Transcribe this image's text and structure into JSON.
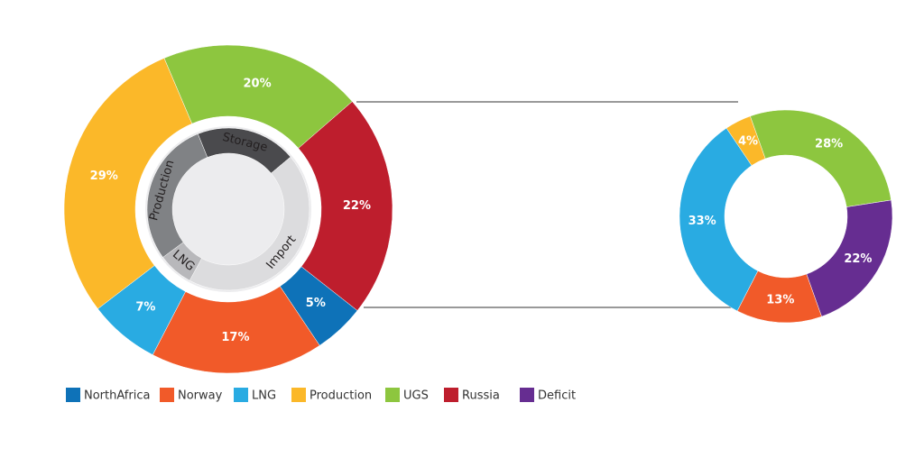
{
  "chart_data": [
    {
      "type": "donut",
      "rings": [
        {
          "categories": [
            "UGS",
            "Russia",
            "NorthAfrica",
            "Norway",
            "LNG",
            "Production"
          ],
          "values": [
            20,
            22,
            5,
            17,
            7,
            29
          ],
          "value_labels": [
            "20%",
            "22%",
            "5%",
            "17%",
            "7%",
            "29%"
          ],
          "colors": [
            "#8dc63f",
            "#be1e2d",
            "#0e72b8",
            "#f15a29",
            "#29abe2",
            "#fbb829"
          ]
        },
        {
          "categories": [
            "Storage",
            "Import",
            "LNG",
            "Production"
          ],
          "values": [
            20,
            44,
            7,
            29
          ],
          "colors": [
            "#4a4a4d",
            "#dcdcde",
            "#b8b8bb",
            "#808285"
          ]
        }
      ]
    },
    {
      "type": "donut",
      "rings": [
        {
          "categories": [
            "Production",
            "UGS",
            "Deficit",
            "Norway",
            "LNG"
          ],
          "values": [
            4,
            28,
            22,
            13,
            33
          ],
          "value_labels": [
            "4%",
            "28%",
            "22%",
            "13%",
            "33%"
          ],
          "colors": [
            "#fbb829",
            "#8dc63f",
            "#662d91",
            "#f15a29",
            "#29abe2"
          ]
        }
      ]
    }
  ],
  "legend": {
    "items": [
      {
        "name": "NorthAfrica",
        "color": "#0e72b8"
      },
      {
        "name": "Norway",
        "color": "#f15a29"
      },
      {
        "name": "LNG",
        "color": "#29abe2"
      },
      {
        "name": "Production",
        "color": "#fbb829"
      },
      {
        "name": "UGS",
        "color": "#8dc63f"
      },
      {
        "name": "Russia",
        "color": "#be1e2d"
      },
      {
        "name": "Deficit",
        "color": "#662d91"
      }
    ]
  }
}
